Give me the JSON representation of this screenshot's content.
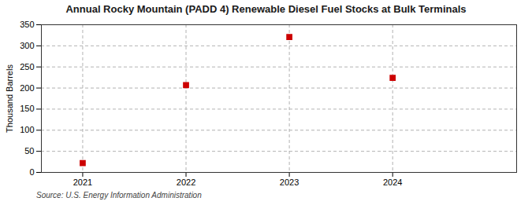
{
  "chart_data": {
    "type": "scatter",
    "title": "Annual Rocky Mountain (PADD 4) Renewable Diesel Fuel Stocks at Bulk Terminals",
    "ylabel": "Thousand Barrels",
    "source": "Source: U.S. Energy Information Administration",
    "x": [
      2021,
      2022,
      2023,
      2024
    ],
    "values": [
      22,
      207,
      321,
      224
    ],
    "color": "#cc0000",
    "marker": "square",
    "xlim": [
      2020.6,
      2025.2
    ],
    "xticks": [
      2021,
      2022,
      2023,
      2024
    ],
    "ylim": [
      0,
      350
    ],
    "yticks": [
      0,
      50,
      100,
      150,
      200,
      250,
      300,
      350
    ],
    "grid": true
  }
}
